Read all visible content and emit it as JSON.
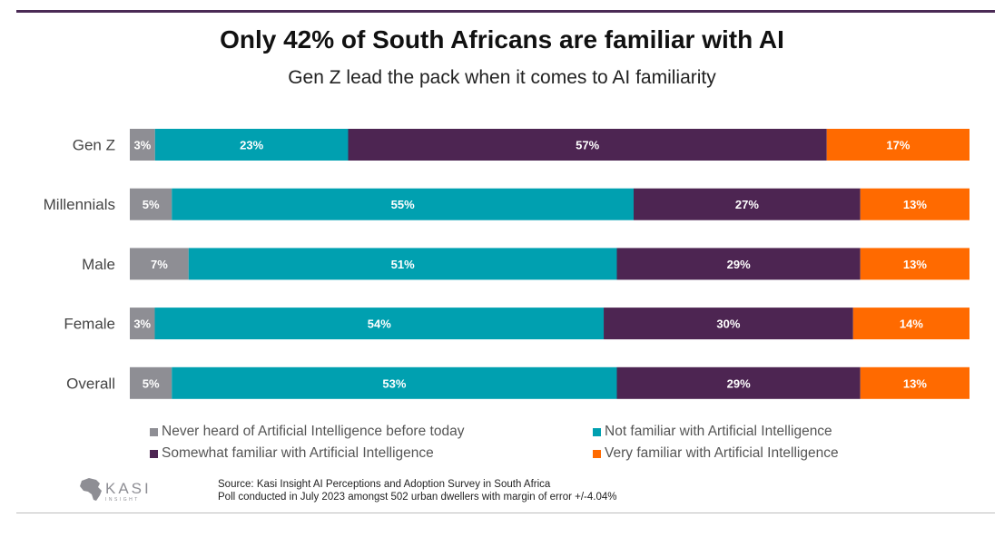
{
  "header": {
    "title": "Only 42% of South Africans are familiar with AI",
    "subtitle": "Gen Z lead the pack when it comes to AI familiarity"
  },
  "chart_data": {
    "type": "bar",
    "orientation": "horizontal",
    "stacked": true,
    "categories": [
      "Gen Z",
      "Millennials",
      "Male",
      "Female",
      "Overall"
    ],
    "series": [
      {
        "name": "Never heard of Artificial Intelligence before today",
        "color": "#8e8e94",
        "values": [
          3,
          5,
          7,
          3,
          5
        ]
      },
      {
        "name": "Not familiar with Artificial Intelligence",
        "color": "#00a0b0",
        "values": [
          23,
          55,
          51,
          54,
          53
        ]
      },
      {
        "name": "Somewhat familiar with Artificial Intelligence",
        "color": "#4d2552",
        "values": [
          57,
          27,
          29,
          30,
          29
        ]
      },
      {
        "name": "Very familiar with Artificial Intelligence",
        "color": "#ff6a00",
        "values": [
          17,
          13,
          13,
          14,
          13
        ]
      }
    ],
    "value_suffix": "%",
    "title": "Only 42% of South Africans are familiar with AI",
    "xlabel": "",
    "ylabel": "",
    "legend_position": "bottom",
    "grid": false
  },
  "footer": {
    "logo_text": "KASI",
    "logo_subtext": "INSIGHT",
    "source_line1": "Source: Kasi Insight AI Perceptions and Adoption Survey in South Africa",
    "source_line2": "Poll conducted in July 2023 amongst 502 urban dwellers with margin of error +/-4.04%"
  }
}
